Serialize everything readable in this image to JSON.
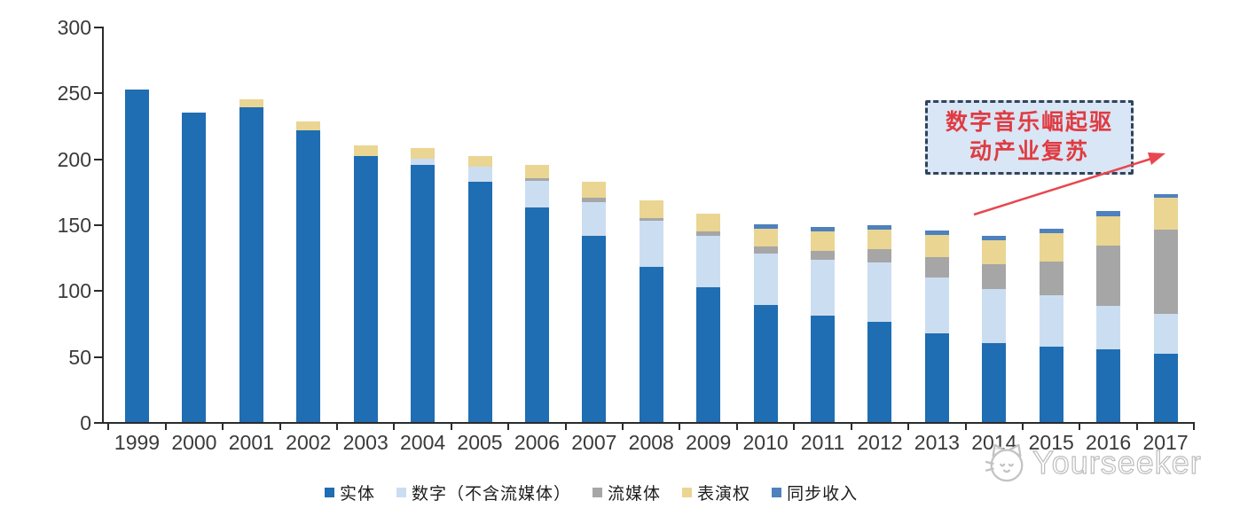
{
  "chart_data": {
    "type": "bar",
    "subtype": "stacked",
    "title": "",
    "xlabel": "",
    "ylabel": "",
    "categories": [
      "1999",
      "2000",
      "2001",
      "2002",
      "2003",
      "2004",
      "2005",
      "2006",
      "2007",
      "2008",
      "2009",
      "2010",
      "2011",
      "2012",
      "2013",
      "2014",
      "2015",
      "2016",
      "2017"
    ],
    "series": [
      {
        "name": "实体",
        "color": "#1F6DB2",
        "values": [
          252,
          235,
          239,
          221,
          202,
          195,
          182,
          163,
          141,
          118,
          102,
          89,
          81,
          76,
          67,
          60,
          57,
          55,
          52
        ]
      },
      {
        "name": "数字（不含流媒体）",
        "color": "#CBDDF1",
        "values": [
          0,
          0,
          0,
          0,
          0,
          5,
          12,
          20,
          26,
          35,
          39,
          39,
          42,
          45,
          43,
          41,
          39,
          33,
          30
        ]
      },
      {
        "name": "流媒体",
        "color": "#A6A6A6",
        "values": [
          0,
          0,
          0,
          0,
          0,
          0,
          0,
          2,
          3,
          2,
          4,
          5,
          7,
          10,
          15,
          19,
          26,
          46,
          64
        ]
      },
      {
        "name": "表演权",
        "color": "#EAD592",
        "values": [
          0,
          0,
          6,
          7,
          8,
          8,
          8,
          10,
          12,
          13,
          13,
          14,
          15,
          15,
          17,
          18,
          21,
          22,
          24
        ]
      },
      {
        "name": "同步收入",
        "color": "#4E81BD",
        "values": [
          0,
          0,
          0,
          0,
          0,
          0,
          0,
          0,
          0,
          0,
          0,
          3,
          3,
          3,
          3,
          3,
          4,
          4,
          3
        ]
      }
    ],
    "ylim": [
      0,
      300
    ],
    "yticks": [
      0,
      50,
      100,
      150,
      200,
      250,
      300
    ],
    "grid": false,
    "legend_position": "bottom"
  },
  "annotation": {
    "line1": "数字音乐崛起驱",
    "line2": "动产业复苏",
    "text_color": "#E03B42",
    "box_fill": "#D9E6F5",
    "box_border_color": "#32435C",
    "arrow_color": "#E8474F"
  },
  "watermark": {
    "text": "Yourseeker",
    "logo": "cat-face-icon"
  }
}
